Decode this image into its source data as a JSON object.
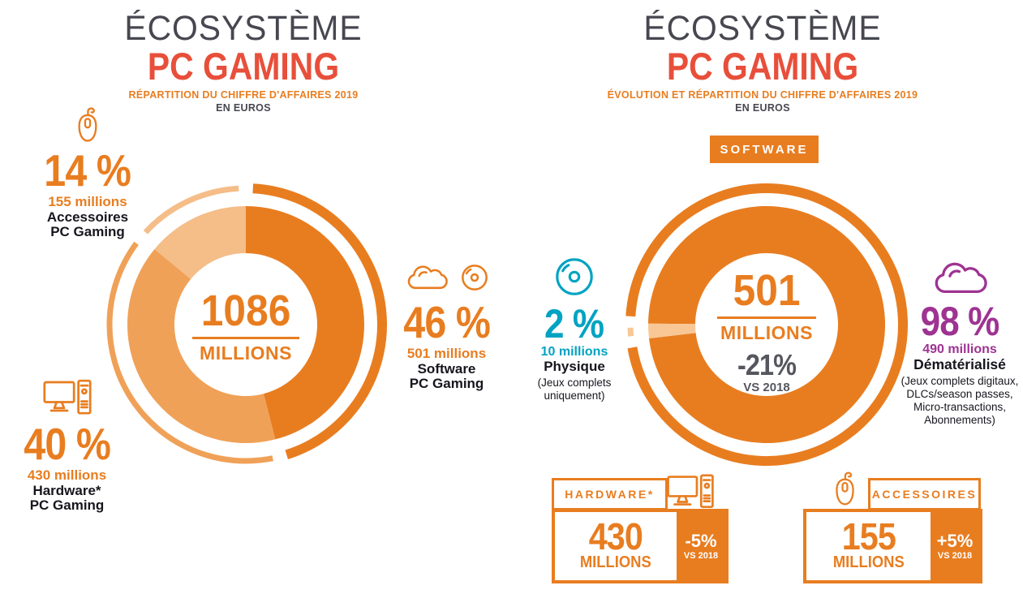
{
  "palette": {
    "orange": "#e87d20",
    "orange_mid": "#f0a158",
    "orange_light": "#f5bd88",
    "orange_pale": "#f8c795",
    "red": "#e84f3b",
    "dark_gray": "#474750",
    "gray": "#55565e",
    "ink": "#16161e",
    "teal": "#00a3c2",
    "purple": "#9e3392"
  },
  "left_panel": {
    "title_line1": "ÉCOSYSTÈME",
    "title_line2": "PC GAMING",
    "subtitle": "RÉPARTITION DU CHIFFRE D'AFFAIRES 2019",
    "subtitle_unit": "EN EUROS",
    "center": {
      "value": "1086",
      "unit": "MILLIONS"
    },
    "accessories": {
      "pct": "14 %",
      "amount": "155 millions",
      "name_line1": "Accessoires",
      "name_line2": "PC Gaming"
    },
    "software": {
      "pct": "46 %",
      "amount": "501 millions",
      "name_line1": "Software",
      "name_line2": "PC Gaming"
    },
    "hardware": {
      "pct": "40 %",
      "amount": "430 millions",
      "name_line1": "Hardware*",
      "name_line2": "PC Gaming"
    }
  },
  "right_panel": {
    "title_line1": "ÉCOSYSTÈME",
    "title_line2": "PC GAMING",
    "subtitle": "ÉVOLUTION ET RÉPARTITION DU CHIFFRE D'AFFAIRES 2019",
    "subtitle_unit": "EN EUROS",
    "badge": "SOFTWARE",
    "center": {
      "value": "501",
      "unit": "MILLIONS",
      "delta": "-21%",
      "delta_ref": "VS 2018"
    },
    "physical": {
      "pct": "2 %",
      "amount": "10 millions",
      "name": "Physique",
      "note_line1": "(Jeux complets",
      "note_line2": "uniquement)"
    },
    "digital": {
      "pct": "98 %",
      "amount": "490 millions",
      "name": "Dématérialisé",
      "note_line1": "(Jeux complets digitaux,",
      "note_line2": "DLCs/season passes,",
      "note_line3": "Micro-transactions,",
      "note_line4": "Abonnements)"
    },
    "hardware_box": {
      "header": "HARDWARE*",
      "value": "430",
      "unit": "MILLIONS",
      "delta": "-5%",
      "delta_ref": "VS 2018"
    },
    "accessories_box": {
      "header": "ACCESSOIRES",
      "value": "155",
      "unit": "MILLIONS",
      "delta": "+5%",
      "delta_ref": "VS 2018"
    }
  },
  "chart_data": [
    {
      "type": "pie",
      "variant": "donut",
      "title": "ÉCOSYSTÈME PC GAMING — RÉPARTITION DU CHIFFRE D'AFFAIRES 2019 EN EUROS",
      "center_total": {
        "value": 1086,
        "unit": "MILLIONS"
      },
      "labels": [
        "Software PC Gaming",
        "Hardware PC Gaming",
        "Accessoires PC Gaming"
      ],
      "values_pct": [
        46,
        40,
        14
      ],
      "values_millions": [
        501,
        430,
        155
      ],
      "colors": [
        "#e87d20",
        "#f0a158",
        "#f5bd88"
      ],
      "start_angle_deg": 0,
      "legend_position": "around"
    },
    {
      "type": "pie",
      "variant": "donut",
      "title": "SOFTWARE — ÉVOLUTION ET RÉPARTITION DU CHIFFRE D'AFFAIRES 2019 EN EUROS",
      "center_total": {
        "value": 501,
        "unit": "MILLIONS",
        "delta": "-21%",
        "delta_ref": "VS 2018"
      },
      "labels": [
        "Dématérialisé",
        "Physique"
      ],
      "values_pct": [
        98,
        2
      ],
      "values_millions": [
        490,
        10
      ],
      "colors": [
        "#e87d20",
        "#f8c795"
      ],
      "start_angle_deg": 270.5,
      "legend_position": "around"
    }
  ]
}
